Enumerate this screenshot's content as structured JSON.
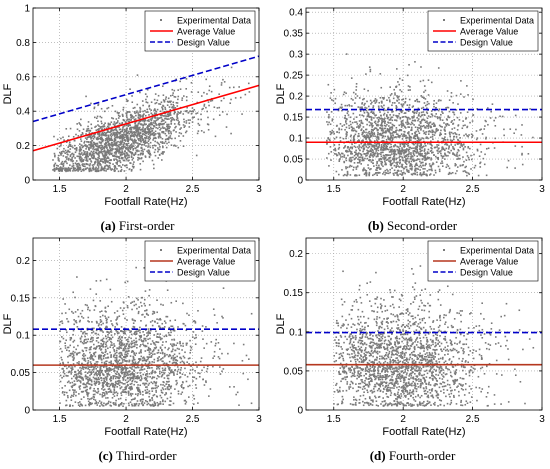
{
  "chart_data": [
    {
      "type": "scatter",
      "caption_label": "(a)",
      "caption_text": "First-order",
      "xlabel": "Footfall Rate(Hz)",
      "ylabel": "DLF",
      "xlim": [
        1.3,
        3.0
      ],
      "ylim": [
        0,
        1.0
      ],
      "xticks": [
        1.5,
        2,
        2.5,
        3
      ],
      "yticks": [
        0,
        0.2,
        0.4,
        0.6,
        0.8,
        1
      ],
      "grid": true,
      "legend_position": "top-right",
      "series": [
        {
          "name": "Experimental Data",
          "kind": "points",
          "color": "#7a7a7a",
          "note": "approx. 2000 measured points (dense cloud)",
          "cloud": {
            "x_center": 1.95,
            "x_spread": 0.28,
            "x_min": 1.45,
            "x_max": 2.95,
            "y_line": {
              "intercept": -0.37,
              "slope": 0.305
            },
            "y_spread": 0.09,
            "y_min": 0.05,
            "y_max": 0.92,
            "count": 2000
          }
        },
        {
          "name": "Average Value",
          "kind": "line",
          "color": "#ff0000",
          "style": "solid",
          "x": [
            1.3,
            3.0
          ],
          "y": [
            0.17,
            0.55
          ]
        },
        {
          "name": "Design Value",
          "kind": "line",
          "color": "#0000c8",
          "style": "dashed",
          "x": [
            1.3,
            3.0
          ],
          "y": [
            0.34,
            0.72
          ]
        }
      ]
    },
    {
      "type": "scatter",
      "caption_label": "(b)",
      "caption_text": "Second-order",
      "xlabel": "Footfall Rate(Hz)",
      "ylabel": "DLF",
      "xlim": [
        1.3,
        3.0
      ],
      "ylim": [
        0,
        0.41
      ],
      "xticks": [
        1.5,
        2,
        2.5,
        3
      ],
      "yticks": [
        0,
        0.05,
        0.1,
        0.15,
        0.2,
        0.25,
        0.3,
        0.35,
        0.4
      ],
      "grid": true,
      "legend_position": "top-right",
      "series": [
        {
          "name": "Experimental Data",
          "kind": "points",
          "color": "#7a7a7a",
          "note": "approx. 2000 measured points (dense cloud)",
          "cloud": {
            "x_center": 1.95,
            "x_spread": 0.28,
            "x_min": 1.45,
            "x_max": 2.95,
            "y_line": {
              "intercept": 0.09,
              "slope": 0
            },
            "y_spread": 0.045,
            "y_min": 0.01,
            "y_max": 0.38,
            "count": 2000
          }
        },
        {
          "name": "Average Value",
          "kind": "line",
          "color": "#ff0000",
          "style": "solid",
          "x": [
            1.3,
            3.0
          ],
          "y": [
            0.09,
            0.09
          ]
        },
        {
          "name": "Design Value",
          "kind": "line",
          "color": "#0000c8",
          "style": "dashed",
          "x": [
            1.3,
            3.0
          ],
          "y": [
            0.168,
            0.168
          ]
        }
      ]
    },
    {
      "type": "scatter",
      "caption_label": "(c)",
      "caption_text": "Third-order",
      "xlabel": "Footfall Rate(Hz)",
      "ylabel": "DLF",
      "xlim": [
        1.3,
        3.0
      ],
      "ylim": [
        0,
        0.23
      ],
      "xticks": [
        1.5,
        2,
        2.5,
        3
      ],
      "yticks": [
        0,
        0.05,
        0.1,
        0.15,
        0.2
      ],
      "grid": true,
      "legend_position": "top-right",
      "series": [
        {
          "name": "Experimental Data",
          "kind": "points",
          "color": "#7a7a7a",
          "note": "approx. 2000 measured points (dense cloud)",
          "cloud": {
            "x_center": 1.95,
            "x_spread": 0.28,
            "x_min": 1.5,
            "x_max": 2.95,
            "y_line": {
              "intercept": 0.06,
              "slope": 0
            },
            "y_spread": 0.03,
            "y_min": 0.005,
            "y_max": 0.2,
            "count": 2000
          }
        },
        {
          "name": "Average Value",
          "kind": "line",
          "color": "#b5371f",
          "style": "solid",
          "x": [
            1.3,
            3.0
          ],
          "y": [
            0.06,
            0.06
          ]
        },
        {
          "name": "Design Value",
          "kind": "line",
          "color": "#0000c8",
          "style": "dashed",
          "x": [
            1.3,
            3.0
          ],
          "y": [
            0.108,
            0.108
          ]
        }
      ]
    },
    {
      "type": "scatter",
      "caption_label": "(d)",
      "caption_text": "Fourth-order",
      "xlabel": "Footfall Rate(Hz)",
      "ylabel": "DLF",
      "xlim": [
        1.3,
        3.0
      ],
      "ylim": [
        0,
        0.22
      ],
      "xticks": [
        1.5,
        2,
        2.5,
        3
      ],
      "yticks": [
        0,
        0.05,
        0.1,
        0.15,
        0.2
      ],
      "grid": true,
      "legend_position": "top-right",
      "series": [
        {
          "name": "Experimental Data",
          "kind": "points",
          "color": "#7a7a7a",
          "note": "approx. 2000 measured points (dense cloud)",
          "cloud": {
            "x_center": 1.95,
            "x_spread": 0.28,
            "x_min": 1.5,
            "x_max": 2.95,
            "y_line": {
              "intercept": 0.058,
              "slope": 0
            },
            "y_spread": 0.03,
            "y_min": 0.005,
            "y_max": 0.2,
            "count": 2000
          }
        },
        {
          "name": "Average Value",
          "kind": "line",
          "color": "#b5371f",
          "style": "solid",
          "x": [
            1.3,
            3.0
          ],
          "y": [
            0.058,
            0.058
          ]
        },
        {
          "name": "Design Value",
          "kind": "line",
          "color": "#0000c8",
          "style": "dashed",
          "x": [
            1.3,
            3.0
          ],
          "y": [
            0.099,
            0.099
          ]
        }
      ]
    }
  ]
}
